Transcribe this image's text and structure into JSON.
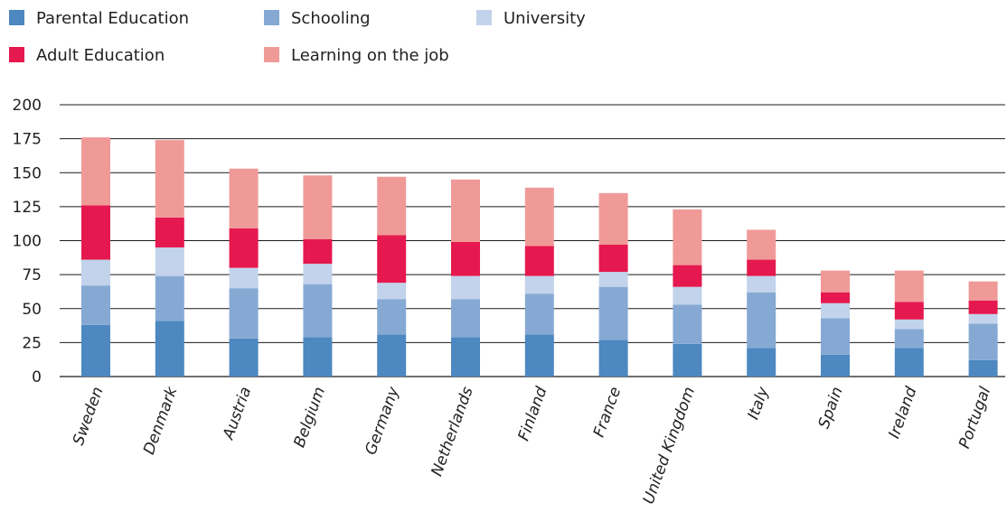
{
  "chart_data": {
    "type": "bar",
    "stacked": true,
    "title": "",
    "xlabel": "",
    "ylabel": "",
    "ylim": [
      0,
      200
    ],
    "yticks": [
      0,
      25,
      50,
      75,
      100,
      125,
      150,
      175,
      200
    ],
    "grid": "horizontal",
    "legend_position": "top-left",
    "categories": [
      "Sweden",
      "Denmark",
      "Austria",
      "Belgium",
      "Germany",
      "Netherlands",
      "Finland",
      "France",
      "United Kingdom",
      "Italy",
      "Spain",
      "Ireland",
      "Portugal"
    ],
    "series": [
      {
        "name": "Parental Education",
        "color": "#4d88c0",
        "values": [
          38,
          41,
          28,
          29,
          31,
          29,
          31,
          27,
          24,
          21,
          16,
          21,
          12
        ]
      },
      {
        "name": "Schooling",
        "color": "#86a9d4",
        "values": [
          29,
          33,
          37,
          39,
          26,
          28,
          30,
          39,
          29,
          41,
          27,
          14,
          27
        ]
      },
      {
        "name": "University",
        "color": "#c2d3eb",
        "values": [
          19,
          21,
          15,
          15,
          12,
          17,
          13,
          11,
          13,
          12,
          11,
          7,
          7
        ]
      },
      {
        "name": "Adult Education",
        "color": "#e5194f",
        "values": [
          40,
          22,
          29,
          18,
          35,
          25,
          22,
          20,
          16,
          12,
          8,
          13,
          10
        ]
      },
      {
        "name": "Learning on the job",
        "color": "#f09a98",
        "values": [
          50,
          57,
          44,
          47,
          43,
          46,
          43,
          38,
          41,
          22,
          16,
          23,
          14
        ]
      }
    ]
  }
}
